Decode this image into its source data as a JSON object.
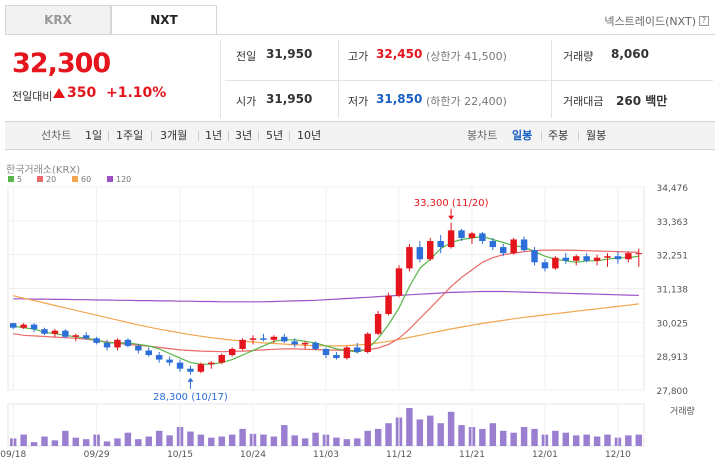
{
  "tabs": [
    {
      "label": "KRX",
      "active": false
    },
    {
      "label": "NXT",
      "active": true
    }
  ],
  "exchange": {
    "label": "넥스트레이드(NXT)",
    "help": "?"
  },
  "quote": {
    "price": "32,300",
    "change_label": "전일대비",
    "change_value": "350",
    "change_pct": "+1.10%",
    "direction": "up"
  },
  "info": {
    "prev_label": "전일",
    "prev_value": "31,950",
    "open_label": "시가",
    "open_value": "31,950",
    "high_label": "고가",
    "high_value": "32,450",
    "high_limit": "(상한가 41,500)",
    "low_label": "저가",
    "low_value": "31,850",
    "low_limit": "(하한가 22,400)",
    "volume_label": "거래량",
    "volume_value": "8,060",
    "amount_label": "거래대금",
    "amount_value": "260 백만"
  },
  "toolbar": {
    "line_label": "선차트",
    "periods": [
      "1일",
      "1주일",
      "3개월",
      "1년",
      "3년",
      "5년",
      "10년"
    ],
    "candle_label": "봉차트",
    "candle_periods": [
      "일봉",
      "주봉",
      "월봉"
    ],
    "candle_selected": "일봉"
  },
  "colors": {
    "up": "#e4151c",
    "down": "#2d6fd8",
    "ma5": "#58b548",
    "ma20": "#e86a6a",
    "ma60": "#f3a64f",
    "ma120": "#9c52c6",
    "volume": "#9a7fd1"
  },
  "chart_data": {
    "type": "candlestick",
    "source_label": "한국거래소(KRX)",
    "legend": [
      "5",
      "20",
      "60",
      "120"
    ],
    "volume_label": "거래량",
    "y_ticks": [
      "34,476",
      "33,363",
      "32,251",
      "31,138",
      "30,025",
      "28,913",
      "27,800"
    ],
    "ylim": [
      27800,
      34476
    ],
    "x_ticks": [
      "09/18",
      "09/29",
      "10/15",
      "10/24",
      "11/03",
      "11/12",
      "11/21",
      "12/01",
      "12/10"
    ],
    "x_tick_index": [
      0,
      8,
      16,
      23,
      30,
      37,
      44,
      51,
      58
    ],
    "annotations": {
      "max": {
        "text": "33,300 (11/20)",
        "index": 42,
        "value": 33300
      },
      "min": {
        "text": "28,300 (10/17)",
        "index": 17,
        "value": 28300
      }
    },
    "candles": [
      [
        30000,
        30000,
        29800,
        29850
      ],
      [
        29850,
        30000,
        29800,
        29950
      ],
      [
        29950,
        30000,
        29700,
        29800
      ],
      [
        29800,
        29850,
        29600,
        29650
      ],
      [
        29650,
        29800,
        29550,
        29750
      ],
      [
        29750,
        29800,
        29500,
        29550
      ],
      [
        29550,
        29650,
        29400,
        29600
      ],
      [
        29600,
        29700,
        29450,
        29500
      ],
      [
        29500,
        29550,
        29300,
        29350
      ],
      [
        29350,
        29450,
        29100,
        29200
      ],
      [
        29200,
        29500,
        29100,
        29450
      ],
      [
        29450,
        29500,
        29200,
        29250
      ],
      [
        29250,
        29300,
        29000,
        29100
      ],
      [
        29100,
        29200,
        28900,
        28950
      ],
      [
        28950,
        29050,
        28700,
        28800
      ],
      [
        28800,
        28900,
        28600,
        28700
      ],
      [
        28700,
        28800,
        28400,
        28500
      ],
      [
        28500,
        28600,
        28300,
        28400
      ],
      [
        28400,
        28700,
        28350,
        28650
      ],
      [
        28650,
        28750,
        28500,
        28700
      ],
      [
        28700,
        29000,
        28650,
        28950
      ],
      [
        28950,
        29200,
        28900,
        29150
      ],
      [
        29150,
        29500,
        29100,
        29450
      ],
      [
        29450,
        29600,
        29300,
        29500
      ],
      [
        29500,
        29650,
        29400,
        29450
      ],
      [
        29450,
        29600,
        29350,
        29550
      ],
      [
        29550,
        29650,
        29350,
        29400
      ],
      [
        29400,
        29500,
        29200,
        29300
      ],
      [
        29300,
        29400,
        29150,
        29350
      ],
      [
        29350,
        29400,
        29100,
        29150
      ],
      [
        29150,
        29200,
        28850,
        28950
      ],
      [
        28950,
        29050,
        28800,
        28850
      ],
      [
        28850,
        29250,
        28800,
        29200
      ],
      [
        29200,
        29350,
        29000,
        29050
      ],
      [
        29050,
        29700,
        29000,
        29650
      ],
      [
        29650,
        30400,
        29600,
        30300
      ],
      [
        30300,
        31000,
        30250,
        30900
      ],
      [
        30900,
        31900,
        30850,
        31800
      ],
      [
        31800,
        32600,
        31700,
        32500
      ],
      [
        32500,
        32700,
        32000,
        32100
      ],
      [
        32100,
        32800,
        32050,
        32700
      ],
      [
        32700,
        32900,
        32300,
        32500
      ],
      [
        32500,
        33300,
        32450,
        33050
      ],
      [
        33050,
        33100,
        32700,
        32800
      ],
      [
        32800,
        33000,
        32600,
        32950
      ],
      [
        32950,
        33000,
        32600,
        32700
      ],
      [
        32700,
        32800,
        32400,
        32500
      ],
      [
        32500,
        32600,
        32200,
        32300
      ],
      [
        32300,
        32800,
        32250,
        32750
      ],
      [
        32750,
        32850,
        32350,
        32400
      ],
      [
        32400,
        32500,
        31900,
        32000
      ],
      [
        32000,
        32100,
        31700,
        31800
      ],
      [
        31800,
        32200,
        31750,
        32150
      ],
      [
        32150,
        32300,
        31950,
        32050
      ],
      [
        32050,
        32250,
        31900,
        32200
      ],
      [
        32200,
        32300,
        32000,
        32050
      ],
      [
        32050,
        32250,
        31900,
        32150
      ],
      [
        32150,
        32300,
        31850,
        32200
      ],
      [
        32200,
        32350,
        31950,
        32100
      ],
      [
        32100,
        32350,
        32000,
        32300
      ],
      [
        32300,
        32450,
        31850,
        32300
      ]
    ],
    "volume": [
      20,
      30,
      10,
      25,
      15,
      40,
      22,
      18,
      30,
      12,
      20,
      35,
      18,
      25,
      40,
      28,
      50,
      38,
      30,
      22,
      25,
      30,
      45,
      32,
      30,
      25,
      55,
      28,
      20,
      35,
      30,
      22,
      18,
      20,
      40,
      45,
      60,
      75,
      100,
      70,
      80,
      60,
      90,
      55,
      50,
      45,
      60,
      40,
      35,
      50,
      45,
      30,
      40,
      35,
      28,
      30,
      25,
      30,
      22,
      28,
      30
    ],
    "ma5": [
      29900,
      29850,
      29800,
      29700,
      29650,
      29600,
      29550,
      29500,
      29450,
      29350,
      29350,
      29350,
      29300,
      29250,
      29150,
      29000,
      28850,
      28700,
      28650,
      28650,
      28700,
      28800,
      28950,
      29100,
      29250,
      29400,
      29450,
      29450,
      29400,
      29350,
      29250,
      29150,
      29100,
      29050,
      29150,
      29500,
      29950,
      30500,
      31200,
      31800,
      32100,
      32450,
      32650,
      32750,
      32800,
      32850,
      32750,
      32650,
      32550,
      32500,
      32350,
      32200,
      32100,
      32050,
      32000,
      32050,
      32050,
      32100,
      32150,
      32150,
      32200
    ],
    "ma20": [
      29650,
      29600,
      29580,
      29560,
      29540,
      29520,
      29500,
      29470,
      29430,
      29380,
      29340,
      29300,
      29270,
      29240,
      29200,
      29160,
      29120,
      29100,
      29080,
      29070,
      29060,
      29070,
      29080,
      29100,
      29120,
      29140,
      29150,
      29150,
      29140,
      29130,
      29120,
      29110,
      29100,
      29100,
      29120,
      29180,
      29300,
      29500,
      29800,
      30150,
      30500,
      30850,
      31200,
      31500,
      31750,
      32000,
      32150,
      32250,
      32300,
      32350,
      32380,
      32400,
      32400,
      32400,
      32390,
      32380,
      32370,
      32360,
      32350,
      32340,
      32330
    ],
    "ma60": [
      30900,
      30820,
      30740,
      30660,
      30580,
      30500,
      30420,
      30340,
      30260,
      30180,
      30100,
      30020,
      29940,
      29870,
      29800,
      29740,
      29680,
      29620,
      29570,
      29520,
      29480,
      29440,
      29410,
      29380,
      29350,
      29330,
      29310,
      29290,
      29270,
      29260,
      29250,
      29250,
      29260,
      29280,
      29310,
      29350,
      29400,
      29460,
      29530,
      29600,
      29670,
      29740,
      29810,
      29870,
      29930,
      29990,
      30040,
      30090,
      30140,
      30190,
      30230,
      30270,
      30310,
      30350,
      30390,
      30430,
      30470,
      30510,
      30550,
      30590,
      30630
    ],
    "ma120": [
      30800,
      30800,
      30790,
      30790,
      30780,
      30780,
      30770,
      30770,
      30760,
      30760,
      30750,
      30750,
      30740,
      30740,
      30730,
      30730,
      30720,
      30720,
      30710,
      30710,
      30700,
      30700,
      30700,
      30700,
      30700,
      30710,
      30720,
      30730,
      30740,
      30750,
      30770,
      30790,
      30810,
      30830,
      30850,
      30870,
      30890,
      30910,
      30930,
      30950,
      30970,
      30990,
      31010,
      31020,
      31030,
      31040,
      31040,
      31040,
      31030,
      31020,
      31010,
      31000,
      30990,
      30980,
      30970,
      30960,
      30950,
      30940,
      30930,
      30920,
      30910
    ]
  }
}
